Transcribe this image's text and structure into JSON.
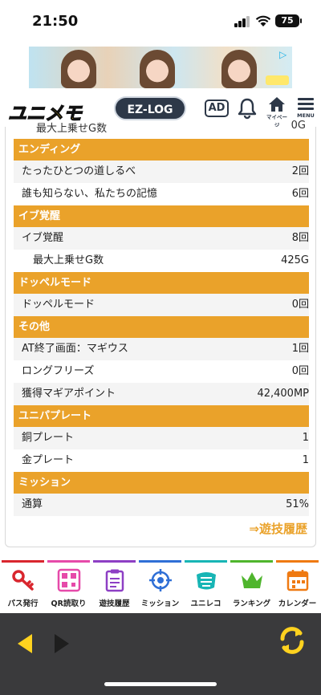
{
  "status_bar": {
    "time": "21:50",
    "battery": "75"
  },
  "header": {
    "logo": "ユニメモ",
    "ezlog_label": "EZ-LOG",
    "ad_label": "AD",
    "home_label": "マイページ",
    "menu_label": "MENU"
  },
  "content": {
    "cutoff_row": {
      "label": "最大上乗せG数",
      "value": "0G"
    },
    "sections": [
      {
        "title": "エンディング",
        "rows": [
          {
            "label": "たったひとつの道しるべ",
            "value": "2回"
          },
          {
            "label": "誰も知らない、私たちの記憶",
            "value": "6回"
          }
        ]
      },
      {
        "title": "イブ覚醒",
        "rows": [
          {
            "label": "イブ覚醒",
            "value": "8回"
          },
          {
            "label": "最大上乗せG数",
            "value": "425G"
          }
        ]
      },
      {
        "title": "ドッペルモード",
        "rows": [
          {
            "label": "ドッペルモード",
            "value": "0回"
          }
        ]
      },
      {
        "title": "その他",
        "rows": [
          {
            "label": "AT終了画面：マギウス",
            "value": "1回"
          },
          {
            "label": "ロングフリーズ",
            "value": "0回"
          },
          {
            "label": "獲得マギアポイント",
            "value": "42,400MP"
          }
        ]
      },
      {
        "title": "ユニパプレート",
        "rows": [
          {
            "label": "銅プレート",
            "value": "1"
          },
          {
            "label": "金プレート",
            "value": "1"
          }
        ]
      },
      {
        "title": "ミッション",
        "rows": [
          {
            "label": "通算",
            "value": "51%"
          }
        ]
      }
    ],
    "history_link": "⇒遊技履歴"
  },
  "tabs": [
    {
      "label": "パス発行",
      "icon": "key-icon",
      "color": "#d9262e"
    },
    {
      "label": "QR読取り",
      "icon": "qr-icon",
      "color": "#e64aa9"
    },
    {
      "label": "遊技履歴",
      "icon": "clipboard-icon",
      "color": "#8d3fc4"
    },
    {
      "label": "ミッション",
      "icon": "target-icon",
      "color": "#2f6fd6"
    },
    {
      "label": "ユニレコ",
      "icon": "unireco-icon",
      "color": "#18b5b5"
    },
    {
      "label": "ランキング",
      "icon": "crown-icon",
      "color": "#4fb52d"
    },
    {
      "label": "カレンダー",
      "icon": "calendar-icon",
      "color": "#ef7a12"
    }
  ],
  "colors": {
    "section": "#eaa22a",
    "nav_bg": "#3a3a3c",
    "nav_accent": "#ffd21f"
  }
}
